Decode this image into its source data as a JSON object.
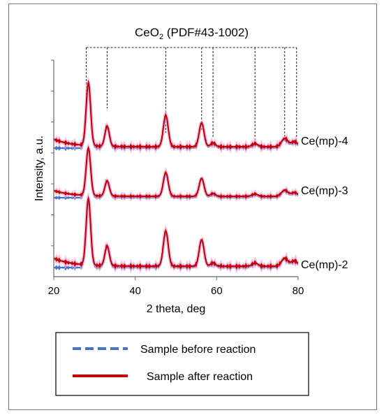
{
  "chart_data": {
    "type": "line",
    "title": "CeO",
    "title_sub": "2",
    "title_ref": " (PDF#43-1002)",
    "xlabel": "2 theta, deg",
    "ylabel": "Intensity, a.u.",
    "xlim": [
      20,
      80
    ],
    "x_ticks": [
      20,
      40,
      60,
      80
    ],
    "reference_peaks": [
      28.5,
      33.1,
      47.5,
      56.3,
      59.1,
      69.4,
      76.7,
      79.1
    ],
    "samples": [
      {
        "label": "Ce(mp)-4",
        "peak_heights": {
          "28.5": 1.0,
          "33.1": 0.32,
          "47.5": 0.5,
          "56.3": 0.38,
          "59.1": 0.06,
          "69.4": 0.05,
          "76.7": 0.13,
          "79.1": 0.08
        }
      },
      {
        "label": "Ce(mp)-3",
        "peak_heights": {
          "28.5": 1.0,
          "33.1": 0.32,
          "47.5": 0.5,
          "56.3": 0.38,
          "59.1": 0.06,
          "69.4": 0.05,
          "76.7": 0.13,
          "79.1": 0.08
        }
      },
      {
        "label": "Ce(mp)-2",
        "peak_heights": {
          "28.5": 1.0,
          "33.1": 0.3,
          "47.5": 0.53,
          "56.3": 0.4,
          "59.1": 0.05,
          "69.4": 0.05,
          "76.7": 0.12,
          "79.1": 0.08
        }
      }
    ],
    "series": [
      {
        "name": "Sample before reaction",
        "color": "#4472c4",
        "style": "dashed"
      },
      {
        "name": "Sample after reaction",
        "color": "#c00000",
        "style": "solid"
      }
    ],
    "legend_position": "bottom"
  }
}
